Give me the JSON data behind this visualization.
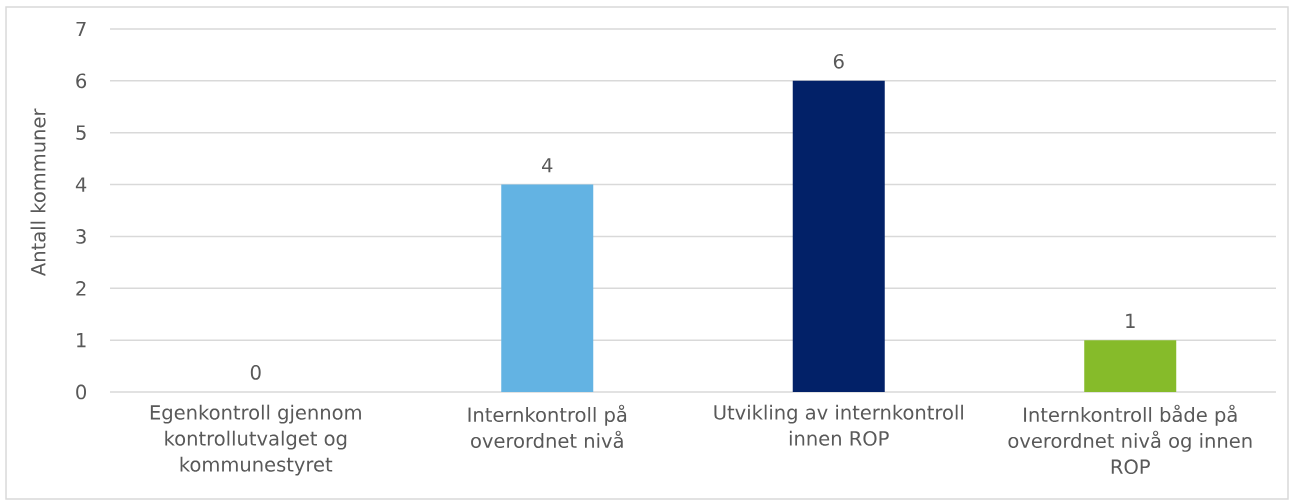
{
  "chart_data": {
    "type": "bar",
    "ylabel": "Antall kommuner",
    "categories": [
      "Egenkontroll gjennom kontrollutvalget og kommunestyret",
      "Internkontroll på overordnet nivå",
      "Utvikling av internkontroll innen ROP",
      "Internkontroll både på overordnet nivå og innen ROP"
    ],
    "values": [
      0,
      4,
      6,
      1
    ],
    "colors": [
      null,
      "#63b3e3",
      "#022168",
      "#86bb2a"
    ],
    "ylim": [
      0,
      7
    ],
    "yticks": [
      0,
      1,
      2,
      3,
      4,
      5,
      6,
      7
    ],
    "grid": "y",
    "data_labels": true
  }
}
